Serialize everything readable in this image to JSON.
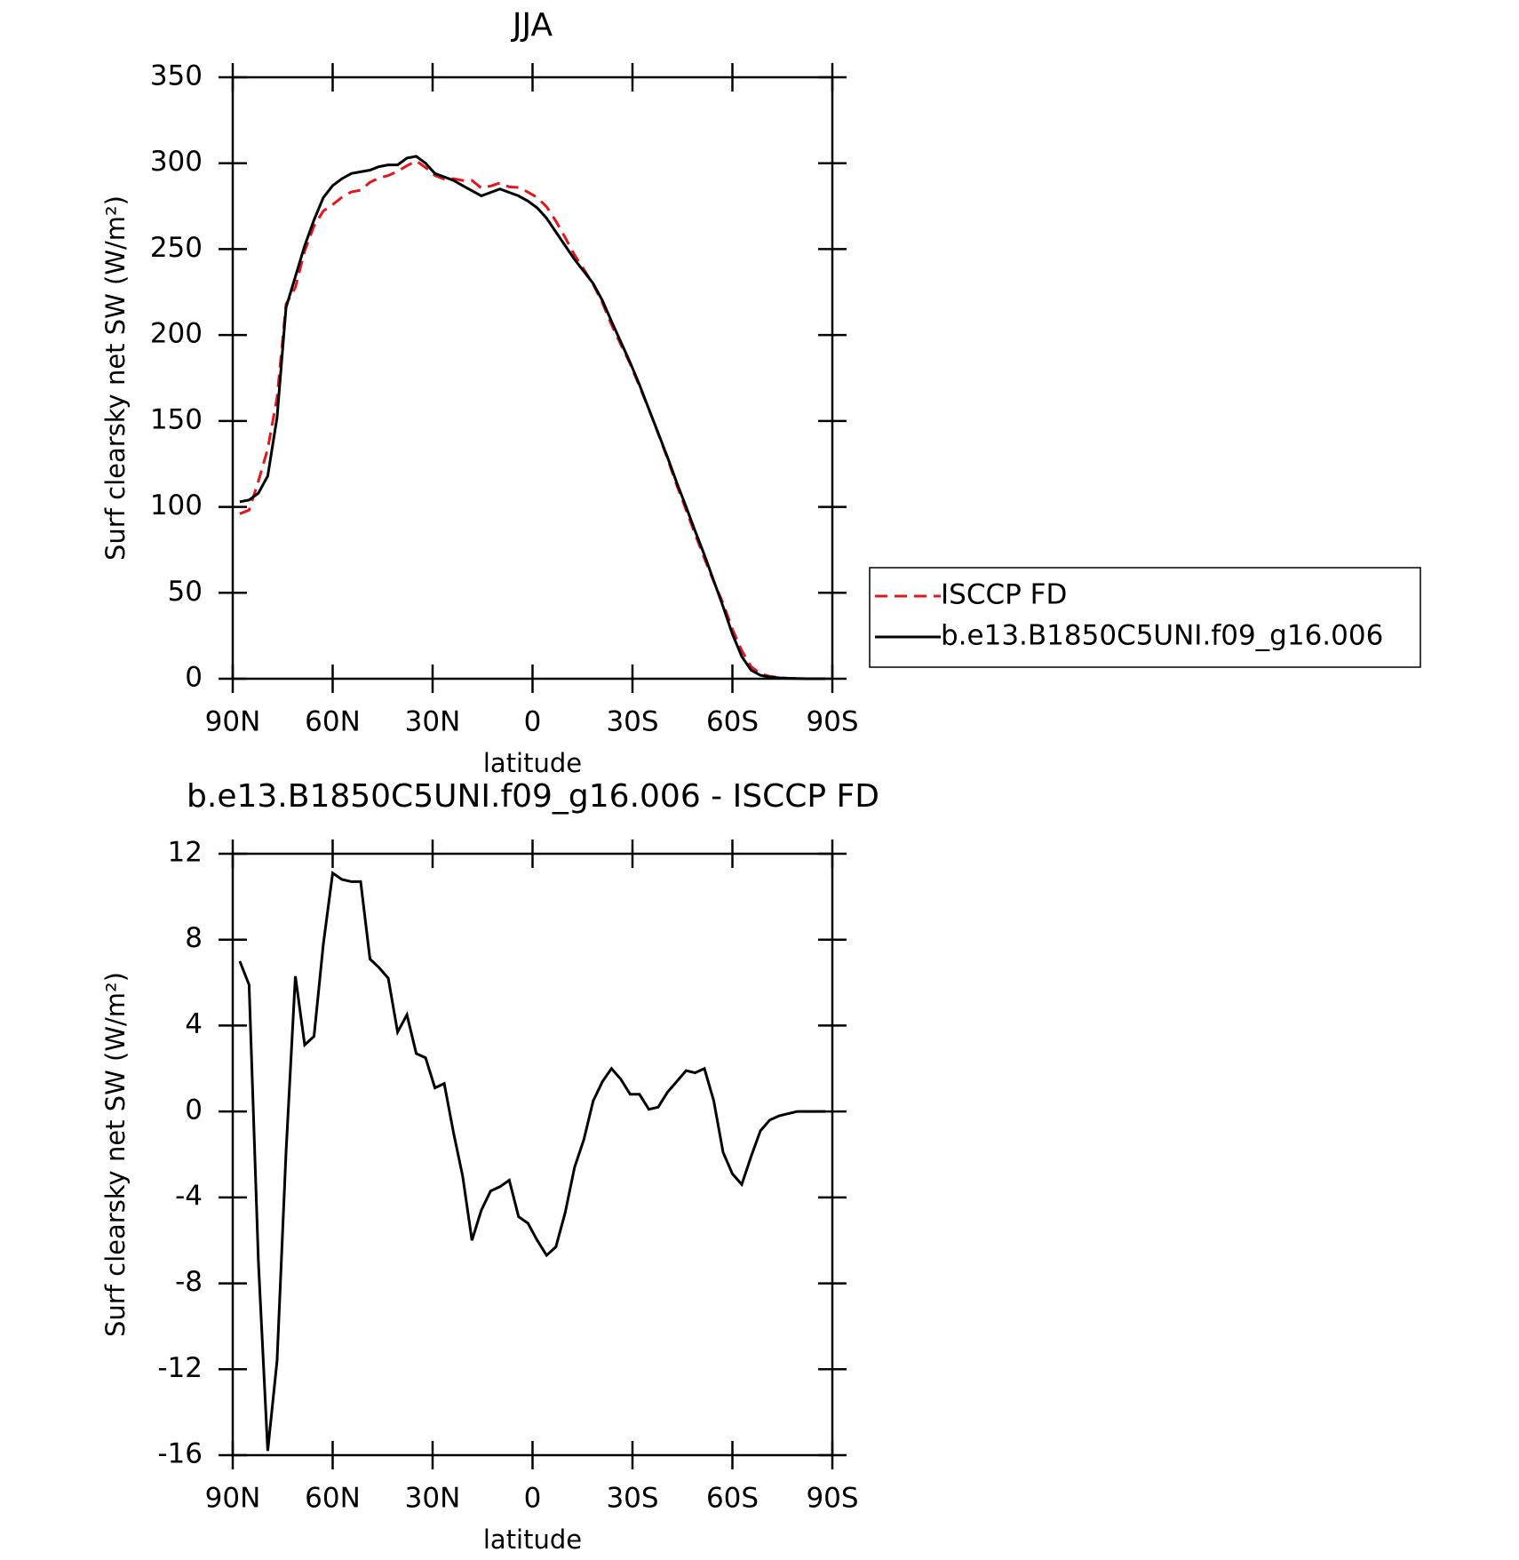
{
  "chart_data": [
    {
      "type": "line",
      "title": "JJA",
      "xlabel": "latitude",
      "ylabel": "Surf clearsky net SW (W/m²)",
      "x": [
        87.9,
        85.1,
        82.3,
        79.5,
        76.7,
        74.0,
        71.2,
        68.4,
        65.6,
        62.8,
        60.0,
        57.2,
        54.4,
        51.6,
        48.8,
        46.1,
        43.3,
        40.5,
        37.7,
        34.9,
        32.1,
        29.3,
        26.5,
        23.7,
        21.0,
        18.2,
        15.4,
        12.6,
        9.8,
        7.0,
        4.2,
        1.4,
        -1.4,
        -4.2,
        -7.0,
        -9.8,
        -12.6,
        -15.4,
        -18.2,
        -21.0,
        -23.7,
        -26.5,
        -29.3,
        -32.1,
        -34.9,
        -37.7,
        -40.5,
        -43.3,
        -46.1,
        -48.8,
        -51.6,
        -54.4,
        -57.2,
        -60.0,
        -62.8,
        -65.6,
        -68.4,
        -71.2,
        -74.0,
        -76.7,
        -79.5,
        -82.3,
        -85.1,
        -87.9
      ],
      "series": [
        {
          "name": "ISCCP FD",
          "color": "#e8141a",
          "dash": true,
          "values": [
            96.0,
            98.1,
            115,
            133.8,
            163.6,
            217.9,
            227.7,
            248.9,
            263.5,
            272.2,
            275.9,
            280.2,
            283.3,
            284.3,
            288.9,
            291.3,
            292.8,
            295.3,
            298.5,
            301.3,
            297.5,
            292.9,
            290.7,
            291,
            290,
            290,
            285.6,
            286.7,
            288.5,
            286.2,
            285.9,
            283.2,
            280,
            274.7,
            266.3,
            256.7,
            246.6,
            238.3,
            229.5,
            218.6,
            206,
            194.5,
            183.2,
            170.2,
            156.9,
            142.8,
            128.1,
            112.6,
            98.1,
            84.2,
            70,
            56.5,
            43.9,
            28.9,
            16.4,
            7.1,
            2.9,
            1.4,
            0.7,
            0.3,
            0.1,
            0,
            0,
            0
          ]
        },
        {
          "name": "b.e13.B1850C5UNI.f09_g16.006",
          "color": "#000000",
          "dash": false,
          "values": [
            103,
            104,
            108,
            118,
            152,
            216,
            234,
            252,
            267,
            280,
            287,
            291,
            294,
            295,
            296,
            298,
            299,
            299,
            303,
            304,
            300,
            294,
            292,
            290,
            287,
            284,
            281,
            283,
            285,
            283,
            281,
            278,
            274,
            268,
            260,
            252,
            244,
            237,
            230,
            220,
            208,
            196,
            184,
            171,
            157,
            143,
            129,
            114,
            100,
            86,
            72,
            57,
            42,
            26,
            13,
            5,
            2,
            1,
            0.5,
            0.2,
            0.1,
            0,
            0,
            0
          ]
        }
      ],
      "xlim": [
        90,
        -90
      ],
      "xticks": [
        {
          "value": 90,
          "label": "90N"
        },
        {
          "value": 60,
          "label": "60N"
        },
        {
          "value": 30,
          "label": "30N"
        },
        0,
        {
          "value": -30,
          "label": "30S"
        },
        {
          "value": -60,
          "label": "60S"
        },
        {
          "value": -90,
          "label": "90S"
        }
      ],
      "ylim": [
        0,
        350
      ],
      "yticks": [
        0,
        50,
        100,
        150,
        200,
        250,
        300,
        350
      ],
      "legend": "right"
    },
    {
      "type": "line",
      "title": "b.e13.B1850C5UNI.f09_g16.006 - ISCCP FD",
      "xlabel": "latitude",
      "ylabel": "Surf clearsky net SW (W/m²)",
      "x": [
        87.9,
        85.1,
        82.3,
        79.5,
        76.7,
        74.0,
        71.2,
        68.4,
        65.6,
        62.8,
        60.0,
        57.2,
        54.4,
        51.6,
        48.8,
        46.1,
        43.3,
        40.5,
        37.7,
        34.9,
        32.1,
        29.3,
        26.5,
        23.7,
        21.0,
        18.2,
        15.4,
        12.6,
        9.8,
        7.0,
        4.2,
        1.4,
        -1.4,
        -4.2,
        -7.0,
        -9.8,
        -12.6,
        -15.4,
        -18.2,
        -21.0,
        -23.7,
        -26.5,
        -29.3,
        -32.1,
        -34.9,
        -37.7,
        -40.5,
        -43.3,
        -46.1,
        -48.8,
        -51.6,
        -54.4,
        -57.2,
        -60.0,
        -62.8,
        -65.6,
        -68.4,
        -71.2,
        -74.0,
        -76.7,
        -79.5,
        -82.3,
        -85.1,
        -87.9
      ],
      "series": [
        {
          "color": "#000000",
          "dash": false,
          "values": [
            7.0,
            5.9,
            -7.0,
            -15.8,
            -11.6,
            -1.9,
            6.3,
            3.1,
            3.5,
            7.8,
            11.1,
            10.8,
            10.7,
            10.7,
            7.1,
            6.7,
            6.2,
            3.7,
            4.5,
            2.7,
            2.5,
            1.1,
            1.3,
            -1.0,
            -3.0,
            -6.0,
            -4.6,
            -3.7,
            -3.5,
            -3.2,
            -4.9,
            -5.2,
            -6.0,
            -6.7,
            -6.3,
            -4.7,
            -2.6,
            -1.3,
            0.5,
            1.4,
            2.0,
            1.5,
            0.8,
            0.8,
            0.1,
            0.2,
            0.9,
            1.4,
            1.9,
            1.8,
            2.0,
            0.5,
            -1.9,
            -2.9,
            -3.4,
            -2.1,
            -0.9,
            -0.4,
            -0.2,
            -0.1,
            0,
            0,
            0,
            0
          ]
        }
      ],
      "xlim": [
        90,
        -90
      ],
      "xticks": [
        {
          "value": 90,
          "label": "90N"
        },
        {
          "value": 60,
          "label": "60N"
        },
        {
          "value": 30,
          "label": "30N"
        },
        0,
        {
          "value": -30,
          "label": "30S"
        },
        {
          "value": -60,
          "label": "60S"
        },
        {
          "value": -90,
          "label": "90S"
        }
      ],
      "ylim": [
        -16,
        12
      ],
      "yticks": [
        -16,
        -12,
        -8,
        -4,
        0,
        4,
        8,
        12
      ]
    }
  ]
}
